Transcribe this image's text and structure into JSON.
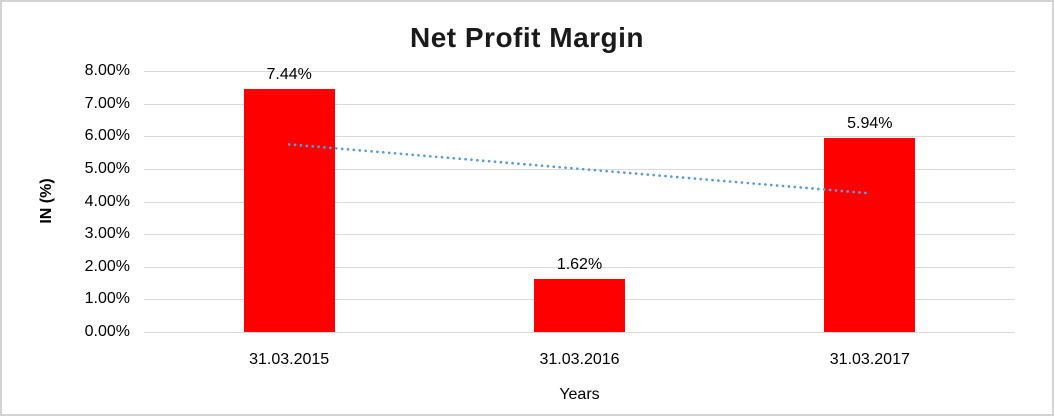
{
  "chart_data": {
    "type": "bar",
    "title": "Net Profit Margin",
    "xlabel": "Years",
    "ylabel": "IN (%)",
    "categories": [
      "31.03.2015",
      "31.03.2016",
      "31.03.2017"
    ],
    "series": [
      {
        "name": "Net Profit Margin",
        "values": [
          7.44,
          1.62,
          5.94
        ],
        "labels": [
          "7.44%",
          "1.62%",
          "5.94%"
        ],
        "color": "#ff0000"
      }
    ],
    "trendline": {
      "type": "linear",
      "style": "dotted",
      "color": "#5b9bd5",
      "start_value": 5.75,
      "end_value": 4.25
    },
    "ylim": [
      0,
      8
    ],
    "ytick_step": 1,
    "yticks": [
      "0.00%",
      "1.00%",
      "2.00%",
      "3.00%",
      "4.00%",
      "5.00%",
      "6.00%",
      "7.00%",
      "8.00%"
    ],
    "grid": true,
    "legend": "none",
    "colors": {
      "gridline": "#d9d9d9",
      "border": "#d3d3d3",
      "title_text": "#1a1a1a",
      "axis_text": "#000000"
    }
  }
}
